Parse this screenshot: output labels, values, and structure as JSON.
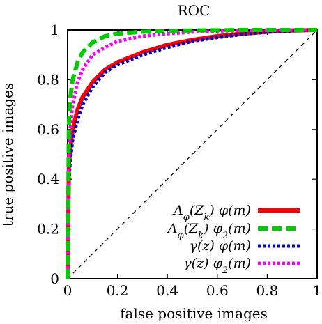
{
  "chart_data": {
    "type": "line",
    "title": "ROC",
    "xlabel": "false positive images",
    "ylabel": "true positive images",
    "xlim": [
      0,
      1
    ],
    "ylim": [
      0,
      1
    ],
    "xticks": [
      0,
      0.2,
      0.4,
      0.6,
      0.8,
      1
    ],
    "yticks": [
      0,
      0.2,
      0.4,
      0.6,
      0.8,
      1
    ],
    "xtick_labels": [
      "0",
      "0.2",
      "0.4",
      "0.6",
      "0.8",
      "1"
    ],
    "ytick_labels": [
      "0",
      "0.2",
      "0.4",
      "0.6",
      "0.8",
      "1"
    ],
    "grid": false,
    "legend_position": "bottom-right",
    "diagonal_reference": true,
    "series": [
      {
        "name": "Λφ(Zk) φ(m)",
        "color": "#ff0000",
        "style": "solid",
        "x": [
          0,
          0.005,
          0.01,
          0.02,
          0.04,
          0.06,
          0.1,
          0.15,
          0.2,
          0.3,
          0.4,
          0.5,
          0.6,
          0.7,
          0.8,
          0.9,
          1.0
        ],
        "y": [
          0,
          0.45,
          0.52,
          0.6,
          0.68,
          0.73,
          0.79,
          0.84,
          0.87,
          0.91,
          0.94,
          0.96,
          0.975,
          0.985,
          0.993,
          0.998,
          1.0
        ]
      },
      {
        "name": "Λφ(Zk) φ2(m)",
        "color": "#00cc00",
        "style": "dashed",
        "x": [
          0,
          0.005,
          0.01,
          0.02,
          0.04,
          0.06,
          0.1,
          0.15,
          0.2,
          0.3,
          0.4,
          0.5,
          0.6,
          0.7,
          0.8,
          0.9,
          1.0
        ],
        "y": [
          0,
          0.62,
          0.72,
          0.8,
          0.87,
          0.91,
          0.95,
          0.975,
          0.985,
          0.993,
          0.996,
          0.998,
          0.999,
          1.0,
          1.0,
          1.0,
          1.0
        ]
      },
      {
        "name": "γ(z) φ(m)",
        "color": "#0000cc",
        "style": "dotted",
        "x": [
          0,
          0.005,
          0.01,
          0.02,
          0.04,
          0.06,
          0.1,
          0.15,
          0.2,
          0.3,
          0.4,
          0.5,
          0.6,
          0.7,
          0.8,
          0.9,
          1.0
        ],
        "y": [
          0,
          0.4,
          0.47,
          0.56,
          0.64,
          0.7,
          0.77,
          0.83,
          0.86,
          0.9,
          0.93,
          0.955,
          0.97,
          0.983,
          0.992,
          0.997,
          1.0
        ]
      },
      {
        "name": "γ(z) φ2(m)",
        "color": "#ff00ff",
        "style": "dotted",
        "x": [
          0,
          0.005,
          0.01,
          0.02,
          0.04,
          0.06,
          0.1,
          0.15,
          0.2,
          0.3,
          0.4,
          0.5,
          0.6,
          0.7,
          0.8,
          0.9,
          1.0
        ],
        "y": [
          0,
          0.5,
          0.6,
          0.7,
          0.79,
          0.84,
          0.9,
          0.93,
          0.955,
          0.975,
          0.985,
          0.992,
          0.996,
          0.998,
          0.999,
          1.0,
          1.0
        ]
      }
    ]
  }
}
